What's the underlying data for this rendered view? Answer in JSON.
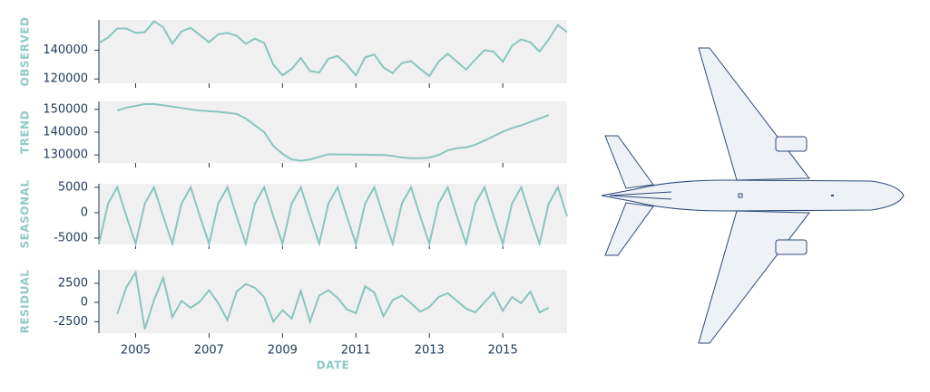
{
  "chart_data": [
    {
      "type": "line",
      "ylabel": "OBSERVED",
      "color": "#88c5c0",
      "ylim": [
        117000,
        161000
      ],
      "yticks": [
        120000,
        140000
      ],
      "xlim": [
        2004,
        2016.75
      ],
      "xticks": [
        2005,
        2007,
        2009,
        2011,
        2013,
        2015
      ],
      "x": [
        2004,
        2004.25,
        2004.5,
        2004.75,
        2005,
        2005.25,
        2005.5,
        2005.75,
        2006,
        2006.25,
        2006.5,
        2006.75,
        2007,
        2007.25,
        2007.5,
        2007.75,
        2008,
        2008.25,
        2008.5,
        2008.75,
        2009,
        2009.25,
        2009.5,
        2009.75,
        2010,
        2010.25,
        2010.5,
        2010.75,
        2011,
        2011.25,
        2011.5,
        2011.75,
        2012,
        2012.25,
        2012.5,
        2012.75,
        2013,
        2013.25,
        2013.5,
        2013.75,
        2014,
        2014.25,
        2014.5,
        2014.75,
        2015,
        2015.25,
        2015.5,
        2015.75,
        2016,
        2016.25,
        2016.5,
        2016.75
      ],
      "values": [
        145000,
        148750,
        155000,
        155000,
        152000,
        152500,
        160000,
        156000,
        144500,
        153000,
        155500,
        150500,
        145500,
        151000,
        152000,
        150000,
        144500,
        148000,
        145000,
        130000,
        122500,
        127000,
        134500,
        125500,
        124500,
        134000,
        136000,
        130000,
        122500,
        135000,
        137000,
        128000,
        124000,
        131000,
        132500,
        127000,
        122000,
        132000,
        137500,
        132000,
        126500,
        133500,
        140000,
        139000,
        132000,
        143000,
        147500,
        145500,
        139000,
        147500,
        157500,
        152500
      ]
    },
    {
      "type": "line",
      "ylabel": "TREND",
      "color": "#88c5c0",
      "ylim": [
        126500,
        153500
      ],
      "yticks": [
        130000,
        140000,
        150000
      ],
      "xlim": [
        2004,
        2016.75
      ],
      "xticks": [
        2005,
        2007,
        2009,
        2011,
        2013,
        2015
      ],
      "x": [
        2004,
        2004.25,
        2004.5,
        2004.75,
        2005,
        2005.25,
        2005.5,
        2005.75,
        2006,
        2006.25,
        2006.5,
        2006.75,
        2007,
        2007.25,
        2007.5,
        2007.75,
        2008,
        2008.25,
        2008.5,
        2008.75,
        2009,
        2009.25,
        2009.5,
        2009.75,
        2010,
        2010.25,
        2010.5,
        2010.75,
        2011,
        2011.25,
        2011.5,
        2011.75,
        2012,
        2012.25,
        2012.5,
        2012.75,
        2013,
        2013.25,
        2013.5,
        2013.75,
        2014,
        2014.25,
        2014.5,
        2014.75,
        2015,
        2015.25,
        2015.5,
        2015.75,
        2016,
        2016.25,
        2016.5,
        2016.75
      ],
      "values": [
        null,
        null,
        149500,
        150800,
        151500,
        152300,
        152300,
        151800,
        151200,
        150600,
        150000,
        149500,
        149200,
        149000,
        148500,
        148000,
        146000,
        143000,
        140000,
        134000,
        130500,
        128000,
        127500,
        128000,
        129200,
        130300,
        130200,
        130200,
        130100,
        130100,
        130000,
        130000,
        129600,
        128900,
        128600,
        128600,
        128800,
        130000,
        132000,
        133000,
        133300,
        134500,
        136300,
        138200,
        140200,
        141800,
        143000,
        144500,
        146000,
        147500,
        null,
        null
      ]
    },
    {
      "type": "line",
      "ylabel": "SEASONAL",
      "color": "#88c5c0",
      "ylim": [
        -6250,
        5700
      ],
      "yticks": [
        -5000,
        0,
        5000
      ],
      "xlim": [
        2004,
        2016.75
      ],
      "xticks": [
        2005,
        2007,
        2009,
        2011,
        2013,
        2015
      ],
      "x": [
        2004,
        2004.25,
        2004.5,
        2004.75,
        2005,
        2005.25,
        2005.5,
        2005.75,
        2006,
        2006.25,
        2006.5,
        2006.75,
        2007,
        2007.25,
        2007.5,
        2007.75,
        2008,
        2008.25,
        2008.5,
        2008.75,
        2009,
        2009.25,
        2009.5,
        2009.75,
        2010,
        2010.25,
        2010.5,
        2010.75,
        2011,
        2011.25,
        2011.5,
        2011.75,
        2012,
        2012.25,
        2012.5,
        2012.75,
        2013,
        2013.25,
        2013.5,
        2013.75,
        2014,
        2014.25,
        2014.5,
        2014.75,
        2015,
        2015.25,
        2015.5,
        2015.75,
        2016,
        2016.25,
        2016.5,
        2016.75
      ],
      "values": [
        -6100,
        1800,
        5000,
        -700,
        -6100,
        1800,
        5000,
        -700,
        -6100,
        1800,
        5000,
        -700,
        -6100,
        1800,
        5000,
        -700,
        -6100,
        1800,
        5000,
        -700,
        -6100,
        1800,
        5000,
        -700,
        -6100,
        1800,
        5000,
        -700,
        -6100,
        1800,
        5000,
        -700,
        -6100,
        1800,
        5000,
        -700,
        -6100,
        1800,
        5000,
        -700,
        -6100,
        1800,
        5000,
        -700,
        -6100,
        1800,
        5000,
        -700,
        -6100,
        1800,
        5000,
        -700
      ]
    },
    {
      "type": "line",
      "ylabel": "RESIDUAL",
      "xlabel": "DATE",
      "color": "#88c5c0",
      "ylim": [
        -4000,
        4250
      ],
      "yticks": [
        -2500,
        0,
        2500
      ],
      "xlim": [
        2004,
        2016.75
      ],
      "xticks": [
        2005,
        2007,
        2009,
        2011,
        2013,
        2015
      ],
      "x": [
        2004,
        2004.25,
        2004.5,
        2004.75,
        2005,
        2005.25,
        2005.5,
        2005.75,
        2006,
        2006.25,
        2006.5,
        2006.75,
        2007,
        2007.25,
        2007.5,
        2007.75,
        2008,
        2008.25,
        2008.5,
        2008.75,
        2009,
        2009.25,
        2009.5,
        2009.75,
        2010,
        2010.25,
        2010.5,
        2010.75,
        2011,
        2011.25,
        2011.5,
        2011.75,
        2012,
        2012.25,
        2012.5,
        2012.75,
        2013,
        2013.25,
        2013.5,
        2013.75,
        2014,
        2014.25,
        2014.5,
        2014.75,
        2015,
        2015.25,
        2015.5,
        2015.75,
        2016,
        2016.25,
        2016.5,
        2016.75
      ],
      "values": [
        null,
        null,
        -1500,
        2000,
        3900,
        -3500,
        300,
        3200,
        -1900,
        200,
        -700,
        100,
        1600,
        -100,
        -2300,
        1400,
        2400,
        1900,
        700,
        -2500,
        -1000,
        -2100,
        1500,
        -2500,
        900,
        1600,
        600,
        -900,
        -1400,
        2100,
        1300,
        -1800,
        300,
        900,
        -100,
        -1200,
        -600,
        700,
        1200,
        200,
        -800,
        -1300,
        0,
        1300,
        -1100,
        700,
        -100,
        1400,
        -1300,
        -700,
        null,
        null
      ]
    }
  ]
}
